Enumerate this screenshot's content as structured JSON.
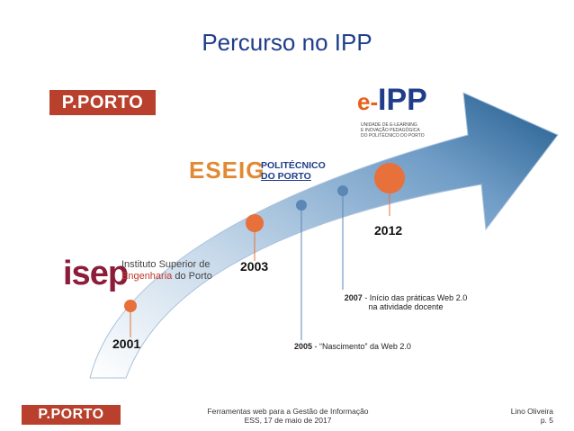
{
  "title": "Percurso no IPP",
  "logos": {
    "pporto_top": "P.PORTO",
    "pporto_bottom": "P.PORTO",
    "isep_mark": "isep",
    "isep_line1": "Instituto Superior de",
    "isep_line2_em": "Engenharia",
    "isep_line2_rest": " do Porto",
    "eseig_mark": "ESEIG",
    "eseig_line1": "POLITÉCNICO",
    "eseig_line2": "DO PORTO",
    "eipp_e": "e-",
    "eipp_ipp": "IPP",
    "eipp_sub1": "UNIDADE DE E-LEARNING",
    "eipp_sub2": "E INOVAÇÃO PEDAGÓGICA",
    "eipp_sub3": "DO POLITÉCNICO DO PORTO"
  },
  "timeline": {
    "y2001": "2001",
    "y2003": "2003",
    "y2012": "2012",
    "note2007_year": "2007",
    "note2007_line1": " - Início das práticas Web 2.0",
    "note2007_line2": "na atividade docente",
    "note2005_year": "2005",
    "note2005_text": " - “Nascimento” da Web 2.0"
  },
  "colors": {
    "arrow_dark": "#1f5a8c",
    "arrow_light": "#dfe9f3",
    "milestone_orange": "#e8703a",
    "milestone_blue": "#5b87b5"
  },
  "footer": {
    "line1": "Ferramentas web para a Gestão de Informação",
    "line2": "ESS, 17 de maio de 2017",
    "author": "Lino Oliveira",
    "page": "p. 5"
  }
}
